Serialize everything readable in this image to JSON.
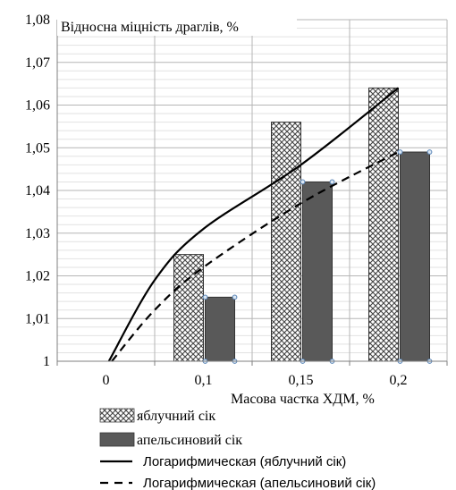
{
  "chart_data": {
    "type": "bar",
    "title": "Відносна міцність драглів, %",
    "xlabel": "Масова частка ХДМ, %",
    "ylabel": "",
    "categories": [
      "0",
      "0,1",
      "0,15",
      "0,2"
    ],
    "x_numeric": [
      0,
      0.1,
      0.15,
      0.2
    ],
    "ylim": [
      1,
      1.08
    ],
    "y_ticks": [
      "1",
      "1,01",
      "1,02",
      "1,03",
      "1,04",
      "1,05",
      "1,06",
      "1,07",
      "1,08"
    ],
    "grid": true,
    "legend_position": "bottom",
    "series": [
      {
        "name": "яблучний сік",
        "kind": "bar",
        "values": [
          null,
          1.025,
          1.056,
          1.064
        ],
        "fill": "crosshatch",
        "color": "#555555"
      },
      {
        "name": "апельсиновий сік",
        "kind": "bar",
        "values": [
          null,
          1.015,
          1.042,
          1.049
        ],
        "fill": "solid",
        "color": "#595959"
      }
    ],
    "trendlines": [
      {
        "name": "Логарифмическая (яблучний сік)",
        "type": "logarithmic",
        "style": "solid",
        "color": "#000000",
        "points": [
          [
            0.003,
            1.0
          ],
          [
            0.05,
            1.019
          ],
          [
            0.1,
            1.031
          ],
          [
            0.15,
            1.046
          ],
          [
            0.2,
            1.064
          ]
        ]
      },
      {
        "name": "Логарифмическая (апельсиновий сік)",
        "type": "logarithmic",
        "style": "dashed",
        "color": "#000000",
        "points": [
          [
            0.006,
            1.0
          ],
          [
            0.05,
            1.012
          ],
          [
            0.1,
            1.022
          ],
          [
            0.15,
            1.037
          ],
          [
            0.2,
            1.049
          ]
        ]
      }
    ]
  }
}
